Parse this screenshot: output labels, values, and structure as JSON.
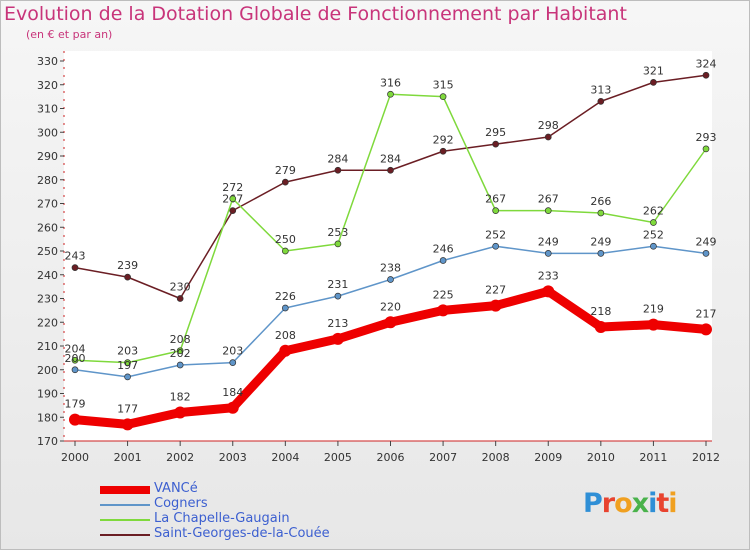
{
  "title": "Evolution de la Dotation Globale de Fonctionnement par Habitant",
  "subtitle": "(en € et par an)",
  "logo": {
    "text": "Proxiti",
    "letters": [
      {
        "ch": "P",
        "color": "#2f8fd6"
      },
      {
        "ch": "r",
        "color": "#e8432f"
      },
      {
        "ch": "o",
        "color": "#f0a020"
      },
      {
        "ch": "x",
        "color": "#49b24b"
      },
      {
        "ch": "i",
        "color": "#2f8fd6"
      },
      {
        "ch": "t",
        "color": "#e8432f"
      },
      {
        "ch": "i",
        "color": "#f0a020"
      }
    ]
  },
  "chart_data": {
    "type": "line",
    "title": "Evolution de la Dotation Globale de Fonctionnement par Habitant",
    "subtitle": "(en € et par an)",
    "x": [
      "2000",
      "2001",
      "2002",
      "2003",
      "2004",
      "2005",
      "2006",
      "2007",
      "2008",
      "2009",
      "2010",
      "2011",
      "2012"
    ],
    "ylim": [
      170,
      330
    ],
    "yticks": [
      170,
      180,
      190,
      200,
      210,
      220,
      230,
      240,
      250,
      260,
      270,
      280,
      290,
      300,
      310,
      320,
      330
    ],
    "grid": false,
    "legend_position": "bottom-left",
    "series": [
      {
        "name": "Saint-Georges-de-la-Couée",
        "color": "#6b1e24",
        "values": [
          243,
          239,
          230,
          267,
          279,
          284,
          284,
          292,
          295,
          298,
          313,
          321,
          324
        ]
      },
      {
        "name": "La Chapelle-Gaugain",
        "color": "#7fd93c",
        "values": [
          204,
          203,
          208,
          272,
          250,
          253,
          316,
          315,
          267,
          267,
          266,
          262,
          293
        ]
      },
      {
        "name": "Cogners",
        "color": "#5f95c9",
        "values": [
          200,
          197,
          202,
          203,
          226,
          231,
          238,
          246,
          252,
          249,
          249,
          252,
          249
        ]
      },
      {
        "name": "VANCé",
        "color": "#ee0000",
        "values": [
          179,
          177,
          182,
          184,
          208,
          213,
          220,
          225,
          227,
          233,
          218,
          219,
          217
        ]
      }
    ],
    "legend_order": [
      "VANCé",
      "Cogners",
      "La Chapelle-Gaugain",
      "Saint-Georges-de-la-Couée"
    ]
  }
}
